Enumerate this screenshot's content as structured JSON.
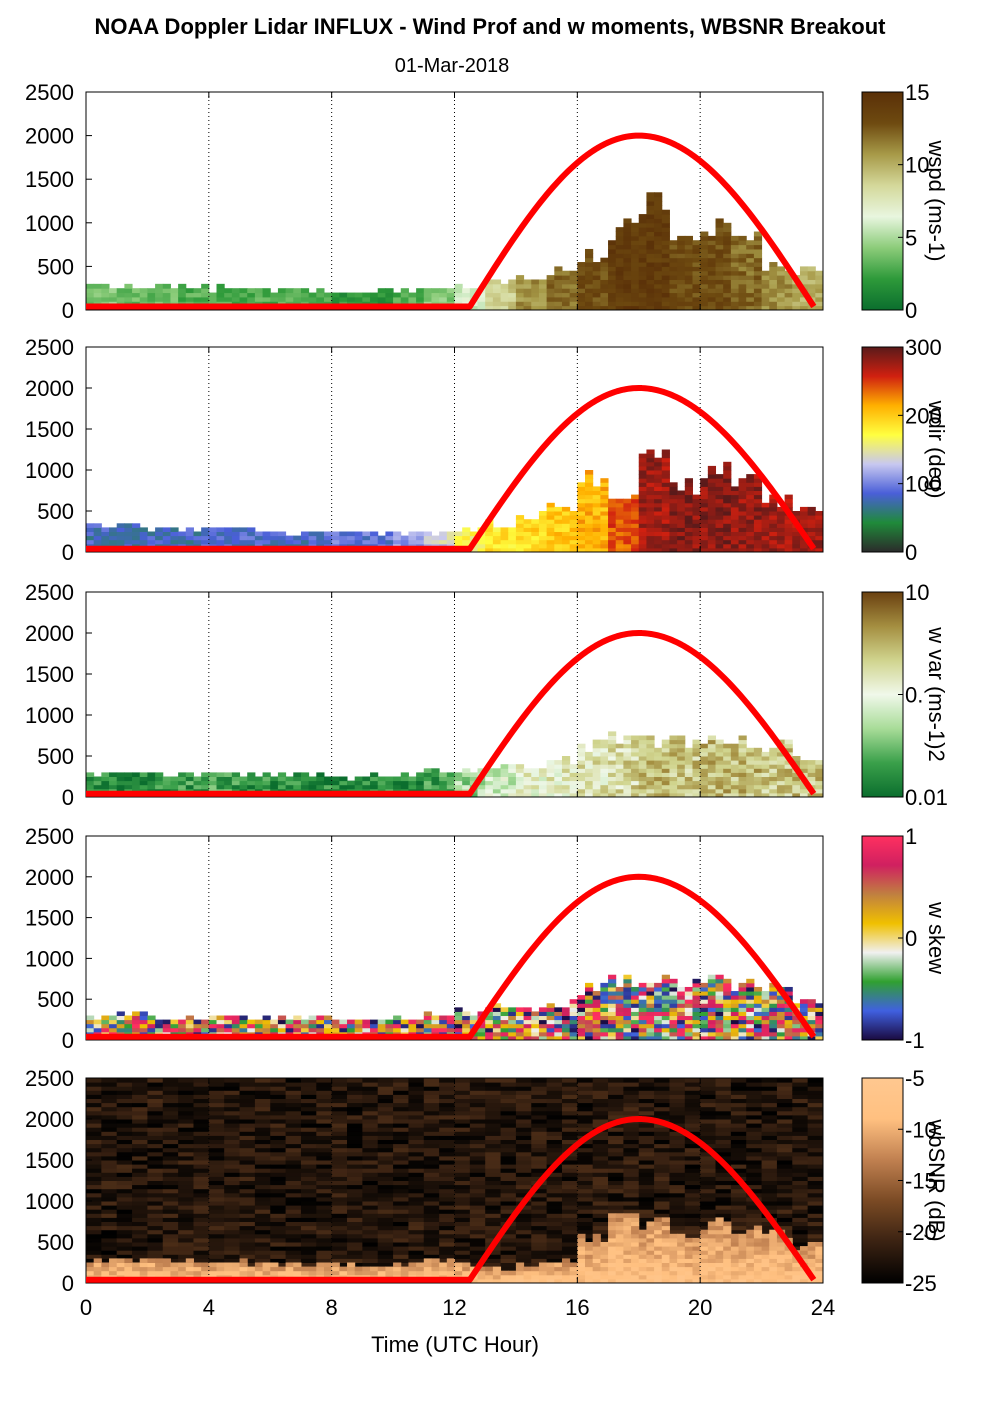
{
  "figure": {
    "title": "NOAA Doppler Lidar INFLUX - Wind Prof and w moments, WBSNR Breakout",
    "subtitle": "01-Mar-2018",
    "xlabel": "Time (UTC Hour)",
    "x_ticks": [
      0,
      4,
      8,
      12,
      16,
      20,
      24
    ],
    "y_ticks": [
      0,
      500,
      1000,
      1500,
      2000,
      2500
    ],
    "colors": {
      "curve": "#ff0000",
      "grid": "#000000"
    }
  },
  "chart_data": [
    {
      "type": "heatmap",
      "name": "wind-speed",
      "ylim": [
        0,
        2500
      ],
      "xlim": [
        0,
        24
      ],
      "colorbar": {
        "label": "wspd (ms-1)",
        "ticks": [
          "15",
          "10",
          "5",
          "0"
        ],
        "range": [
          0,
          15
        ],
        "stops": [
          "#0b6e2e",
          "#2e9a3a",
          "#8ccc7a",
          "#e8f6df",
          "#d4d89a",
          "#a79a48",
          "#6e4a10",
          "#5a3008"
        ]
      },
      "profile": {
        "top_m": [
          260,
          240,
          250,
          240,
          230,
          220,
          210,
          210,
          200,
          200,
          210,
          230,
          240,
          300,
          350,
          420,
          600,
          900,
          1200,
          800,
          950,
          750,
          500,
          420
        ],
        "value": [
          4,
          3.5,
          3.5,
          3,
          3,
          3,
          3,
          2.5,
          2,
          2,
          3,
          4,
          6,
          9,
          11,
          12,
          13,
          14,
          14,
          13,
          13,
          12,
          11,
          10
        ]
      }
    },
    {
      "type": "heatmap",
      "name": "wind-direction",
      "ylim": [
        0,
        2500
      ],
      "xlim": [
        0,
        24
      ],
      "colorbar": {
        "label": "wdir (deg)",
        "ticks": [
          "300",
          "200",
          "100",
          "0"
        ],
        "range": [
          0,
          360
        ],
        "stops": [
          "#2b2b2b",
          "#1f8a3a",
          "#4a5fd8",
          "#c8c8f0",
          "#ffff40",
          "#ffb000",
          "#d02010",
          "#5a1a1a"
        ]
      },
      "profile": {
        "top_m": [
          300,
          280,
          260,
          250,
          240,
          230,
          220,
          210,
          200,
          200,
          200,
          220,
          250,
          320,
          400,
          500,
          900,
          600,
          1300,
          800,
          950,
          900,
          600,
          480
        ],
        "value": [
          95,
          95,
          95,
          95,
          100,
          100,
          100,
          100,
          110,
          110,
          130,
          160,
          200,
          220,
          230,
          240,
          250,
          290,
          330,
          340,
          340,
          335,
          330,
          330
        ]
      }
    },
    {
      "type": "heatmap",
      "name": "w-variance",
      "ylim": [
        0,
        2500
      ],
      "xlim": [
        0,
        24
      ],
      "colorbar": {
        "label": "w var (ms-1)2",
        "ticks": [
          "10",
          "0.",
          "0.01"
        ],
        "range": [
          0.01,
          10
        ],
        "scale": "log",
        "stops": [
          "#0b6e2e",
          "#3aa04a",
          "#a8dc98",
          "#f0f8ea",
          "#d0d48e",
          "#a48e40",
          "#6a4010"
        ]
      },
      "profile": {
        "top_m": [
          280,
          280,
          260,
          260,
          270,
          260,
          260,
          250,
          220,
          220,
          240,
          300,
          320,
          350,
          380,
          420,
          600,
          700,
          700,
          650,
          700,
          650,
          600,
          450
        ],
        "value": [
          0.02,
          0.02,
          0.02,
          0.025,
          0.03,
          0.025,
          0.02,
          0.02,
          0.02,
          0.02,
          0.02,
          0.03,
          0.1,
          0.2,
          0.4,
          0.5,
          0.6,
          0.8,
          1.5,
          1.2,
          1.5,
          1.5,
          1.2,
          1.2
        ]
      }
    },
    {
      "type": "heatmap",
      "name": "w-skewness",
      "ylim": [
        0,
        2500
      ],
      "xlim": [
        0,
        24
      ],
      "colorbar": {
        "label": "w skew",
        "ticks": [
          "1",
          "0",
          "-1"
        ],
        "range": [
          -1,
          1
        ],
        "stops": [
          "#1a0a40",
          "#4060e0",
          "#30a030",
          "#f0f0f0",
          "#f0c000",
          "#c08040",
          "#d02060",
          "#ff3060"
        ]
      },
      "profile": {
        "top_m": [
          280,
          280,
          260,
          260,
          270,
          260,
          260,
          250,
          220,
          220,
          240,
          300,
          320,
          350,
          380,
          420,
          600,
          700,
          700,
          650,
          700,
          650,
          600,
          450
        ],
        "value": [
          0.3,
          -0.2,
          0.5,
          0.2,
          0.4,
          0.1,
          0.3,
          0.2,
          0.1,
          0.4,
          0.3,
          0.2,
          0.1,
          0.3,
          0.4,
          0.2,
          0.5,
          0.3,
          0.6,
          0.4,
          0.5,
          0.3,
          0.2,
          0.3
        ]
      }
    },
    {
      "type": "heatmap",
      "name": "wbsnr",
      "ylim": [
        0,
        2500
      ],
      "xlim": [
        0,
        24
      ],
      "colorbar": {
        "label": "wbSNR (dB)",
        "ticks": [
          "-5",
          "-10",
          "-15",
          "-20",
          "-25"
        ],
        "range": [
          -25,
          -5
        ],
        "stops": [
          "#000000",
          "#3a2212",
          "#7a4a24",
          "#c08050",
          "#ffc080",
          "#ffc890"
        ]
      },
      "profile": {
        "top_m": [
          260,
          260,
          250,
          240,
          240,
          230,
          220,
          220,
          200,
          200,
          200,
          250,
          200,
          150,
          180,
          250,
          500,
          900,
          700,
          600,
          700,
          650,
          550,
          450
        ],
        "value": [
          -6,
          -6,
          -6,
          -6,
          -6,
          -6,
          -6,
          -6,
          -6,
          -6,
          -6,
          -6,
          -6,
          -6,
          -6,
          -6,
          -6,
          -6,
          -6,
          -6,
          -6,
          -6,
          -6,
          -6
        ]
      }
    }
  ],
  "sun_curve": {
    "name": "solar elevation",
    "rise_hour": 12.5,
    "set_hour": 23.7,
    "peak_hour": 18.0,
    "peak_m": 2000,
    "base_m": 40
  }
}
